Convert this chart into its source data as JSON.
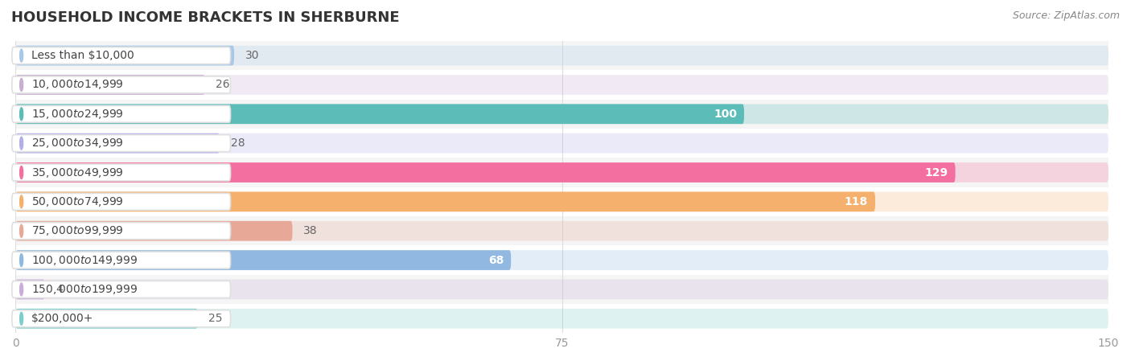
{
  "title": "HOUSEHOLD INCOME BRACKETS IN SHERBURNE",
  "source": "Source: ZipAtlas.com",
  "categories": [
    "Less than $10,000",
    "$10,000 to $14,999",
    "$15,000 to $24,999",
    "$25,000 to $34,999",
    "$35,000 to $49,999",
    "$50,000 to $74,999",
    "$75,000 to $99,999",
    "$100,000 to $149,999",
    "$150,000 to $199,999",
    "$200,000+"
  ],
  "values": [
    30,
    26,
    100,
    28,
    129,
    118,
    38,
    68,
    4,
    25
  ],
  "colors": [
    "#a8c8e8",
    "#c9aed4",
    "#5bbcb8",
    "#b0afe8",
    "#f26fa0",
    "#f5b06e",
    "#e8a898",
    "#90b8e0",
    "#c8aed8",
    "#7ecece"
  ],
  "xlim": [
    0,
    150
  ],
  "xticks": [
    0,
    75,
    150
  ],
  "background_color": "#ffffff",
  "row_bg_color": "#f5f5f5",
  "row_alt_bg_color": "#ffffff",
  "label_inside_threshold": 50,
  "title_fontsize": 13,
  "source_fontsize": 9,
  "bar_label_fontsize": 10,
  "cat_label_fontsize": 10,
  "bar_height": 0.68
}
